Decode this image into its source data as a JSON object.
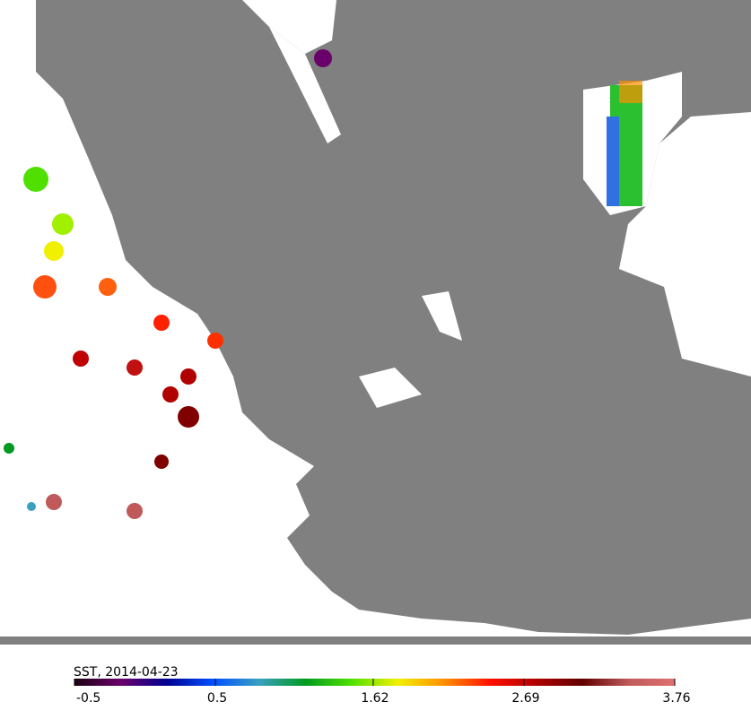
{
  "colorbar": {
    "label": "SST, 2014-04-23",
    "clim": [
      -0.5,
      3.76
    ],
    "ticks": [
      -0.5,
      0.5,
      1.62,
      2.69,
      3.76
    ],
    "colormap": [
      "#1a0010",
      "#6a006a",
      "#000090",
      "#0050ff",
      "#3aa0c0",
      "#009a20",
      "#50e000",
      "#f0f000",
      "#ff9000",
      "#ff1000",
      "#b00000",
      "#600000",
      "#c05a5a",
      "#e07070"
    ]
  }
}
